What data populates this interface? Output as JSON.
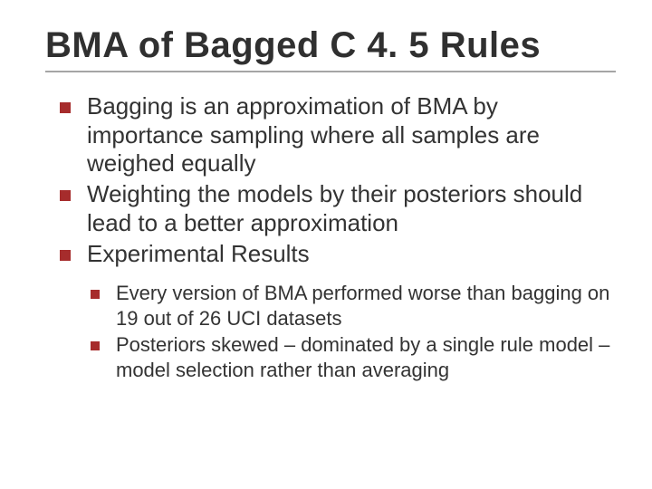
{
  "title": "BMA of Bagged C 4. 5 Rules",
  "rule_color": "#a5a5a5",
  "bullet_color": "#a62c2c",
  "text_color": "#333333",
  "background_color": "#ffffff",
  "title_fontsize_pt": 40,
  "level1_fontsize_pt": 26,
  "level2_fontsize_pt": 22,
  "level1": {
    "items": [
      "Bagging is an approximation of BMA by importance sampling where all samples are weighed equally",
      "Weighting the models by their posteriors should lead to a better approximation",
      "Experimental Results"
    ]
  },
  "level2": {
    "items": [
      "Every version of BMA performed worse than bagging on 19 out of 26 UCI datasets",
      "Posteriors skewed – dominated by a single rule model – model selection rather than averaging"
    ]
  }
}
